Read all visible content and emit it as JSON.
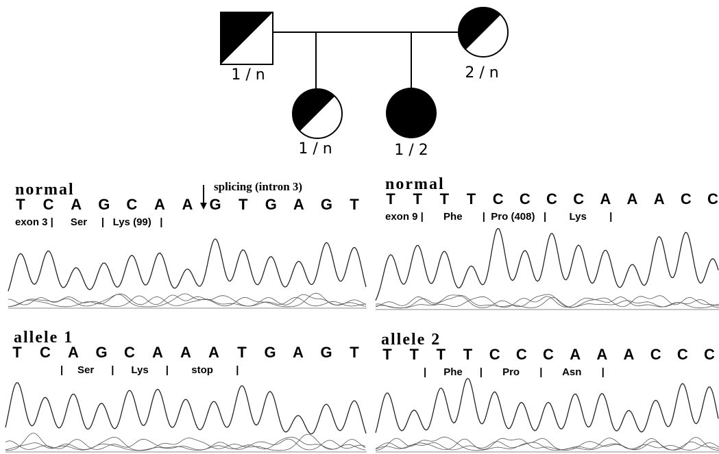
{
  "pedigree": {
    "members": [
      {
        "label": "1 / n"
      },
      {
        "label": "2 / n"
      },
      {
        "label": "1 / n"
      },
      {
        "label": "1 / 2"
      }
    ]
  },
  "panels": [
    {
      "title": "normal",
      "bases": [
        "T",
        "C",
        "A",
        "G",
        "C",
        "A",
        "A",
        "G",
        "T",
        "G",
        "A",
        "G",
        "T"
      ],
      "annotation": "exon 3 |      Ser     |   Lys (99)   |",
      "note": "splicing  (intron 3)"
    },
    {
      "title": "normal",
      "bases": [
        "T",
        "T",
        "T",
        "T",
        "C",
        "C",
        "C",
        "C",
        "A",
        "A",
        "A",
        "C",
        "C"
      ],
      "annotation": "exon 9 |       Phe       |  Pro (408)   |        Lys        |"
    },
    {
      "title": "allele   1",
      "bases": [
        "T",
        "C",
        "A",
        "G",
        "C",
        "A",
        "A",
        "A",
        "T",
        "G",
        "A",
        "G",
        "T"
      ],
      "annotation": "|     Ser      |      Lys      |        stop        |"
    },
    {
      "title": "allele   2",
      "bases": [
        "T",
        "T",
        "T",
        "T",
        "C",
        "C",
        "C",
        "A",
        "A",
        "A",
        "C",
        "C",
        "C"
      ],
      "annotation": "|      Phe      |       Pro       |       Asn       |"
    }
  ]
}
